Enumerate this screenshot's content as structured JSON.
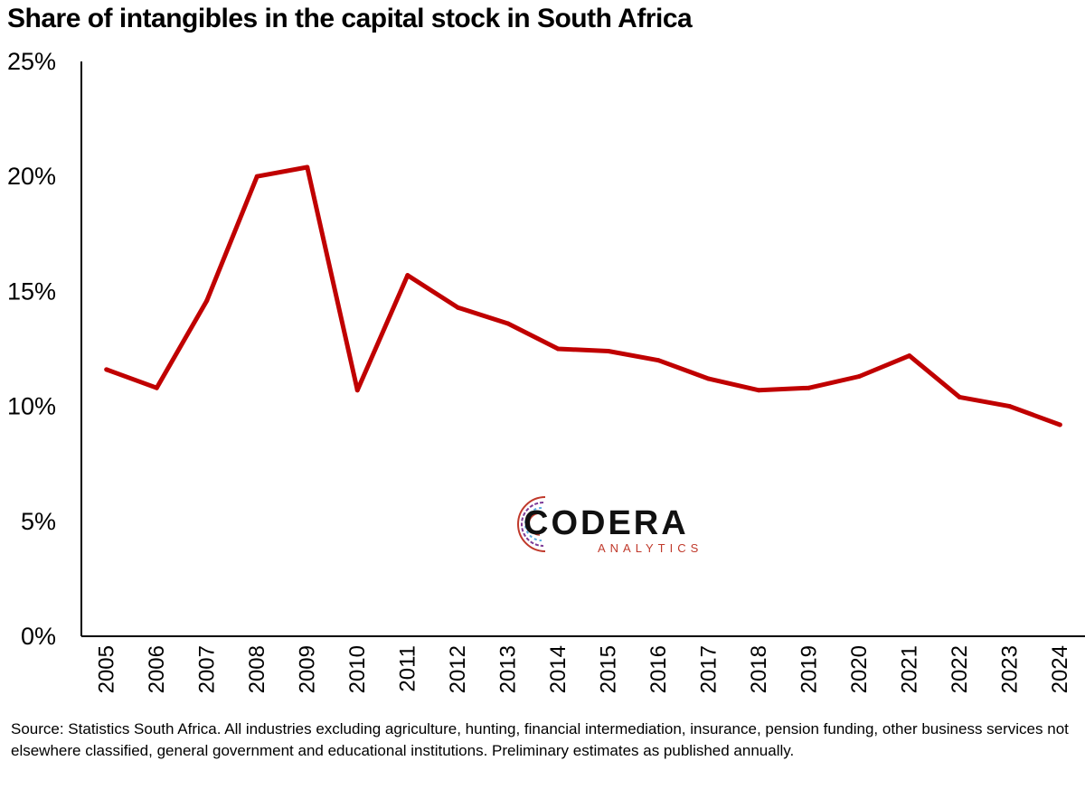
{
  "chart_data": {
    "type": "line",
    "title": "Share of intangibles in the capital stock in South Africa",
    "xlabel": "",
    "ylabel": "",
    "categories": [
      "2005",
      "2006",
      "2007",
      "2008",
      "2009",
      "2010",
      "2011",
      "2012",
      "2013",
      "2014",
      "2015",
      "2016",
      "2017",
      "2018",
      "2019",
      "2020",
      "2021",
      "2022",
      "2023",
      "2024"
    ],
    "series": [
      {
        "values": [
          11.6,
          10.8,
          14.6,
          20.0,
          20.4,
          10.7,
          15.7,
          14.3,
          13.6,
          12.5,
          12.4,
          12.0,
          11.2,
          10.7,
          10.8,
          11.3,
          12.2,
          10.4,
          10.0,
          9.2
        ],
        "color": "#c00000"
      }
    ],
    "ylim": [
      0,
      25
    ],
    "yticks": [
      0,
      5,
      10,
      15,
      20,
      25
    ],
    "ytick_labels": [
      "0%",
      "5%",
      "10%",
      "15%",
      "20%",
      "25%"
    ],
    "grid": false,
    "legend": "none"
  },
  "source": "Source: Statistics South Africa. All industries excluding agriculture, hunting, financial intermediation, insurance, pension funding, other business services not elsewhere classified, general government and educational institutions. Preliminary estimates as published annually.",
  "logo": {
    "name": "CODERA",
    "tagline": "ANALYTICS",
    "icon": "circuit-c-icon"
  }
}
